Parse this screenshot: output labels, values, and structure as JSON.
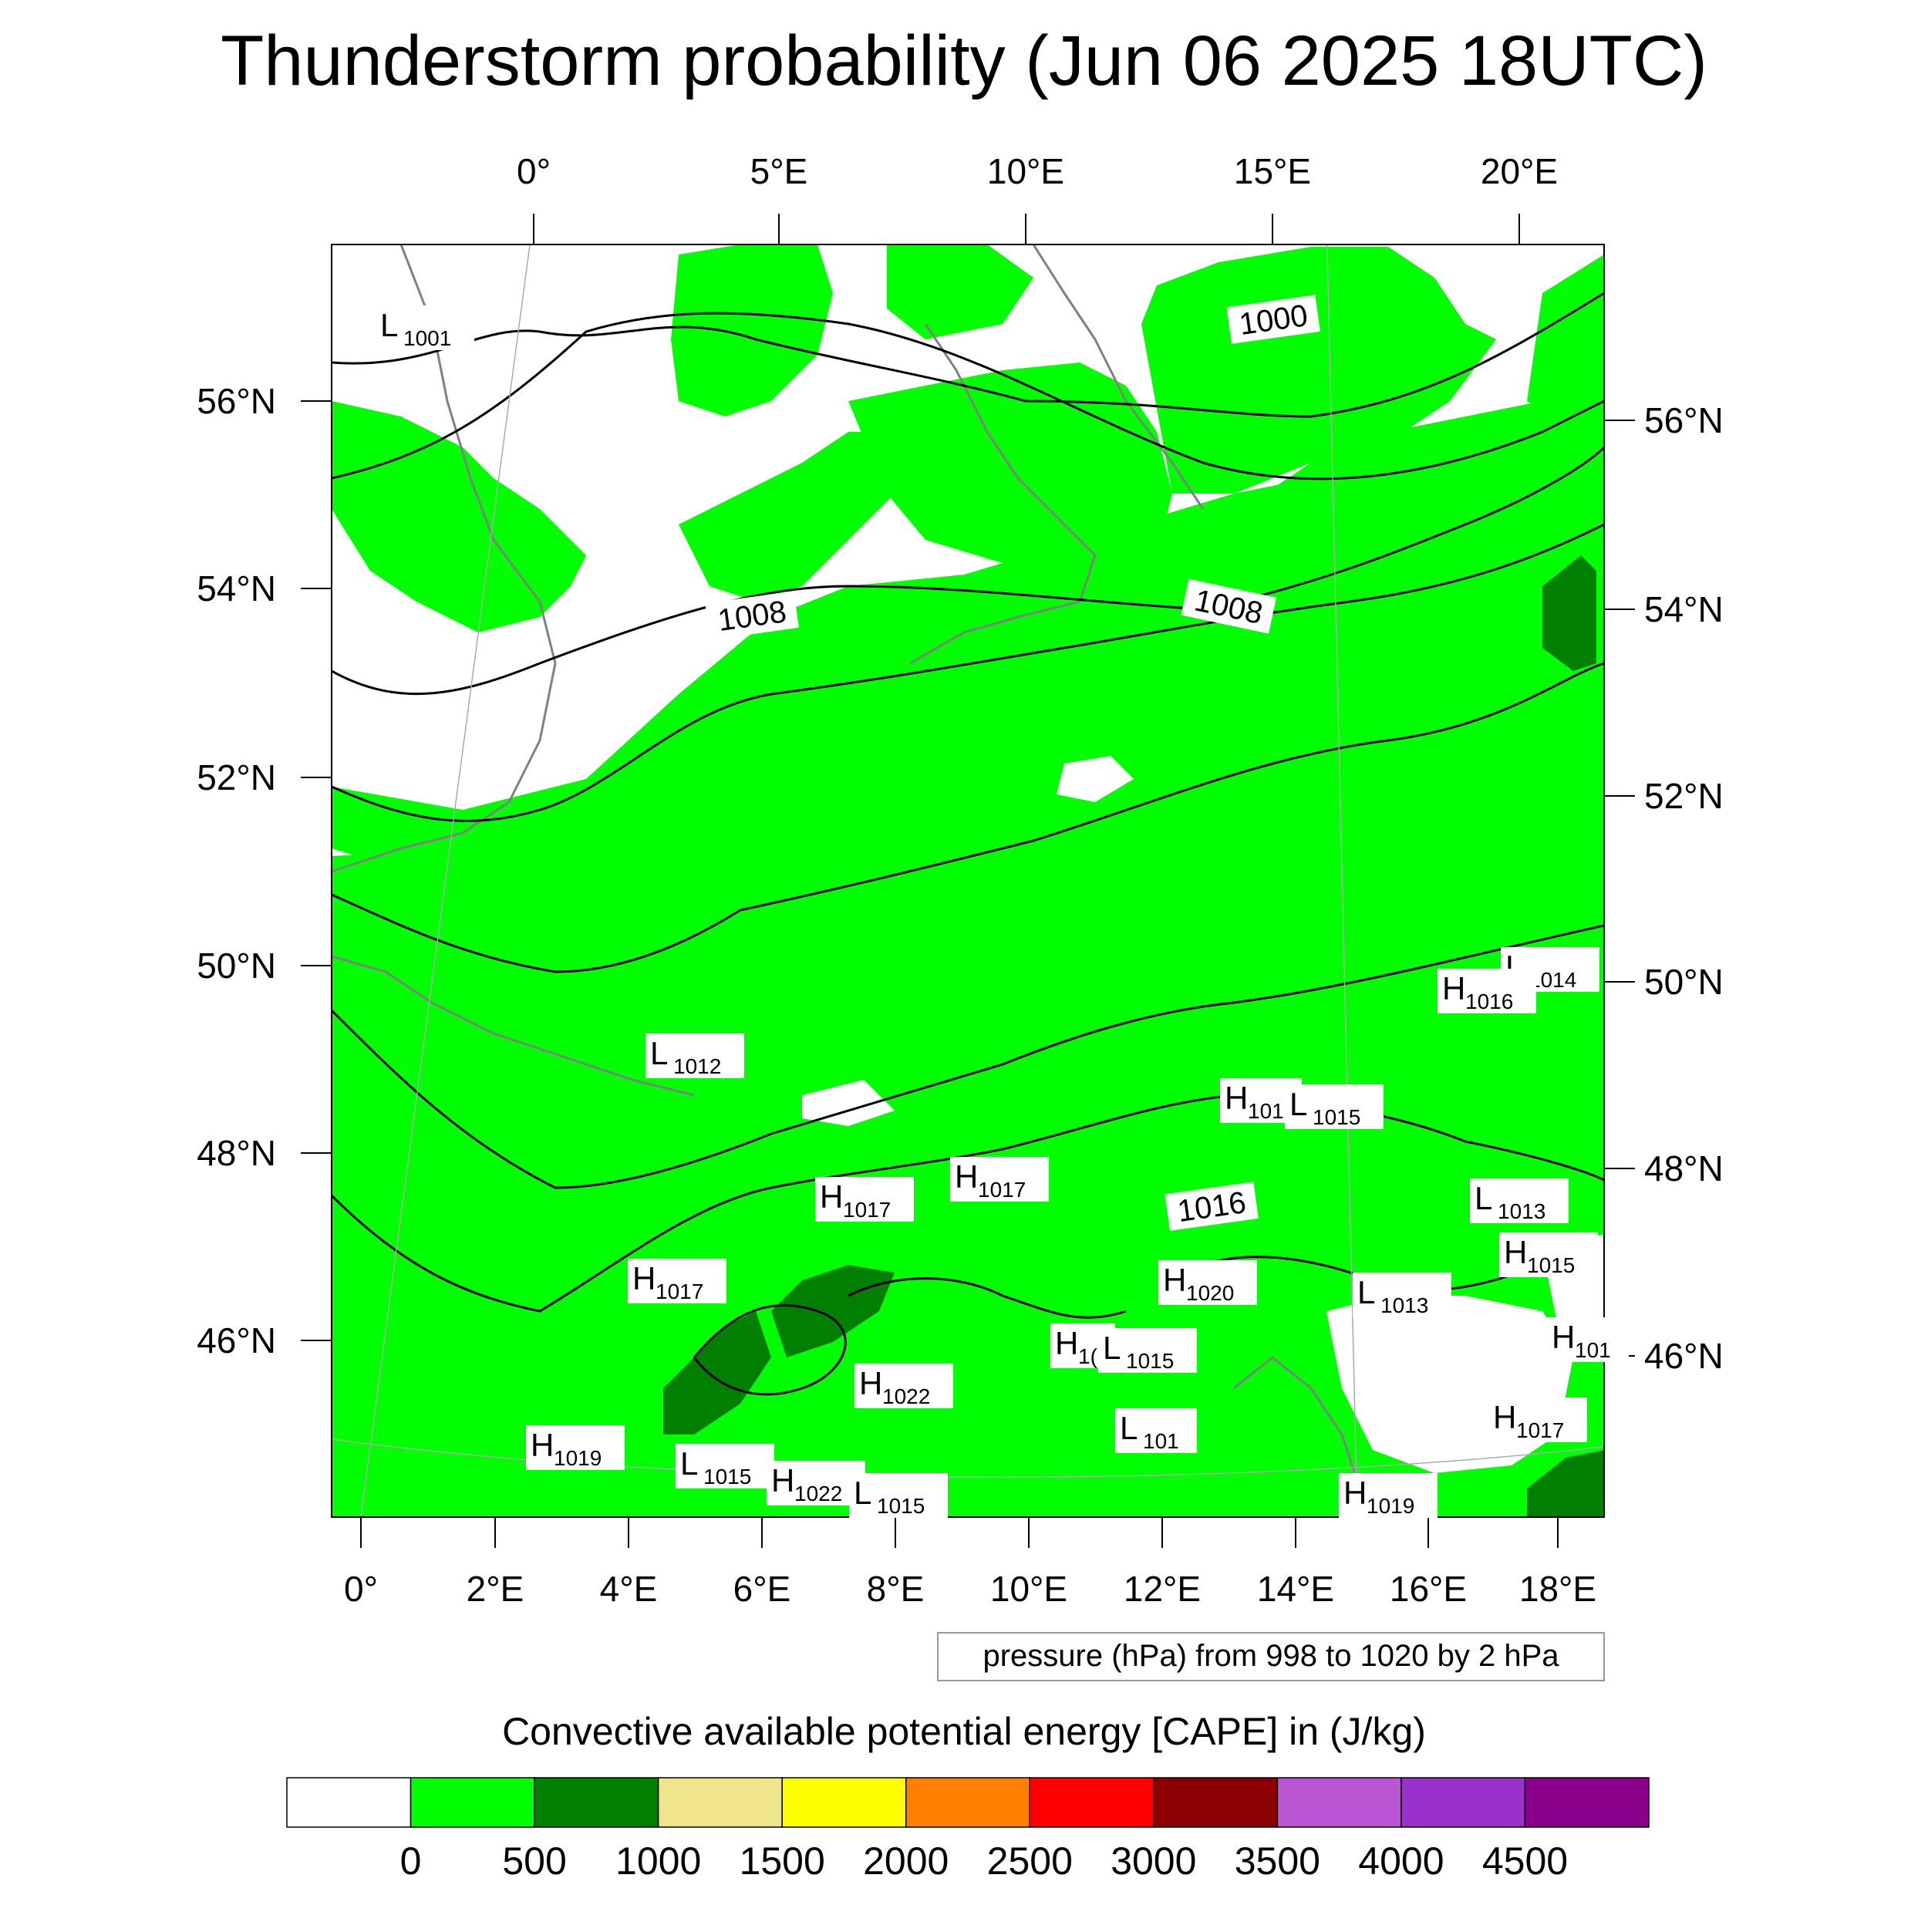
{
  "title": "Thunderstorm probability (Jun 06 2025 18UTC)",
  "axes": {
    "top_lon_labels": [
      "0°",
      "5°E",
      "10°E",
      "15°E",
      "20°E"
    ],
    "bottom_lon_labels": [
      "0°",
      "2°E",
      "4°E",
      "6°E",
      "8°E",
      "10°E",
      "12°E",
      "14°E",
      "16°E",
      "18°E"
    ],
    "left_lat_labels": [
      "56°N",
      "54°N",
      "52°N",
      "50°N",
      "48°N",
      "46°N"
    ],
    "right_lat_labels": [
      "56°N",
      "54°N",
      "52°N",
      "50°N",
      "48°N",
      "46°N"
    ]
  },
  "contour_labels": [
    "1000",
    "1008",
    "1008",
    "1016"
  ],
  "pressure_centers": [
    {
      "type": "L",
      "value": "1001"
    },
    {
      "type": "L",
      "value": "1012"
    },
    {
      "type": "L",
      "value": "1014"
    },
    {
      "type": "H",
      "value": "1016"
    },
    {
      "type": "H",
      "value": "101"
    },
    {
      "type": "L",
      "value": "1015"
    },
    {
      "type": "H",
      "value": "1017"
    },
    {
      "type": "H",
      "value": "1017"
    },
    {
      "type": "L",
      "value": "1013"
    },
    {
      "type": "H",
      "value": "1015"
    },
    {
      "type": "H",
      "value": "1017"
    },
    {
      "type": "H",
      "value": "1020"
    },
    {
      "type": "L",
      "value": "1013"
    },
    {
      "type": "H",
      "value": "101"
    },
    {
      "type": "H",
      "value": "1("
    },
    {
      "type": "L",
      "value": "1015"
    },
    {
      "type": "H",
      "value": "1022"
    },
    {
      "type": "L",
      "value": "101"
    },
    {
      "type": "H",
      "value": "1017"
    },
    {
      "type": "H",
      "value": "1019"
    },
    {
      "type": "L",
      "value": "1015"
    },
    {
      "type": "H",
      "value": "1022"
    },
    {
      "type": "L",
      "value": "1015"
    },
    {
      "type": "H",
      "value": "1019"
    }
  ],
  "pressure_note": "pressure (hPa) from 998 to 1020 by 2 hPa",
  "colorbar": {
    "title": "Convective available potential energy [CAPE] in (J/kg)",
    "colors": [
      "#ffffff",
      "#00ff00",
      "#007f00",
      "#efe68c",
      "#ffff00",
      "#ff8000",
      "#ff0000",
      "#8b0000",
      "#ba55d3",
      "#9932cc",
      "#8b008b"
    ],
    "tick_labels": [
      "0",
      "500",
      "1000",
      "1500",
      "2000",
      "2500",
      "3000",
      "3500",
      "4000",
      "4500"
    ]
  },
  "colors": {
    "cape_0_500": "#00ff00",
    "cape_500_1000": "#007f00",
    "isobar": "#000000",
    "coastline": "#808080"
  }
}
